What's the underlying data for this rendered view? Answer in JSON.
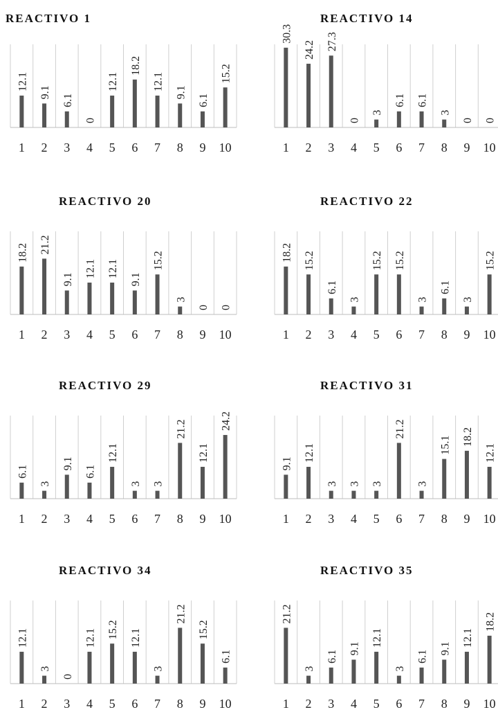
{
  "chart_data": [
    {
      "type": "bar",
      "title": "REACTIVO 1",
      "categories": [
        "1",
        "2",
        "3",
        "4",
        "5",
        "6",
        "7",
        "8",
        "9",
        "10"
      ],
      "values": [
        12.1,
        9.1,
        6.1,
        0,
        12.1,
        18.2,
        12.1,
        9.1,
        6.1,
        15.2
      ],
      "value_labels": [
        "12.1",
        "9.1",
        "6.1",
        "0",
        "12.1",
        "18.2",
        "12.1",
        "9.1",
        "6.1",
        "15.2"
      ],
      "ylim": [
        0,
        30.3
      ],
      "grid": true
    },
    {
      "type": "bar",
      "title": "REACTIVO 14",
      "categories": [
        "1",
        "2",
        "3",
        "4",
        "5",
        "6",
        "7",
        "8",
        "9",
        "10"
      ],
      "values": [
        30.3,
        24.2,
        27.3,
        0,
        3,
        6.1,
        6.1,
        3,
        0,
        0
      ],
      "value_labels": [
        "30.3",
        "24.2",
        "27.3",
        "0",
        "3",
        "6.1",
        "6.1",
        "3",
        "0",
        "0"
      ],
      "ylim": [
        0,
        30.3
      ],
      "grid": true
    },
    {
      "type": "bar",
      "title": "REACTIVO 20",
      "categories": [
        "1",
        "2",
        "3",
        "4",
        "5",
        "6",
        "7",
        "8",
        "9",
        "10"
      ],
      "values": [
        18.2,
        21.2,
        9.1,
        12.1,
        12.1,
        9.1,
        15.2,
        3,
        0,
        0
      ],
      "value_labels": [
        "18.2",
        "21.2",
        "9.1",
        "12.1",
        "12.1",
        "9.1",
        "15.2",
        "3",
        "0",
        "0"
      ],
      "ylim": [
        0,
        30.3
      ],
      "grid": true
    },
    {
      "type": "bar",
      "title": "REACTIVO 22",
      "categories": [
        "1",
        "2",
        "3",
        "4",
        "5",
        "6",
        "7",
        "8",
        "9",
        "10"
      ],
      "values": [
        18.2,
        15.2,
        6.1,
        3,
        15.2,
        15.2,
        3,
        6.1,
        3,
        15.2
      ],
      "value_labels": [
        "18.2",
        "15.2",
        "6.1",
        "3",
        "15.2",
        "15.2",
        "3",
        "6.1",
        "3",
        "15.2"
      ],
      "ylim": [
        0,
        30.3
      ],
      "grid": true
    },
    {
      "type": "bar",
      "title": "REACTIVO 29",
      "categories": [
        "1",
        "2",
        "3",
        "4",
        "5",
        "6",
        "7",
        "8",
        "9",
        "10"
      ],
      "values": [
        6.1,
        3,
        9.1,
        6.1,
        12.1,
        3,
        3,
        21.2,
        12.1,
        24.2
      ],
      "value_labels": [
        "6.1",
        "3",
        "9.1",
        "6.1",
        "12.1",
        "3",
        "3",
        "21.2",
        "12.1",
        "24.2"
      ],
      "ylim": [
        0,
        30.3
      ],
      "grid": true
    },
    {
      "type": "bar",
      "title": "REACTIVO 31",
      "categories": [
        "1",
        "2",
        "3",
        "4",
        "5",
        "6",
        "7",
        "8",
        "9",
        "10"
      ],
      "values": [
        9.1,
        12.1,
        3,
        3,
        3,
        21.2,
        3,
        15.1,
        18.2,
        12.1
      ],
      "value_labels": [
        "9.1",
        "12.1",
        "3",
        "3",
        "3",
        "21.2",
        "3",
        "15.1",
        "18.2",
        "12.1"
      ],
      "ylim": [
        0,
        30.3
      ],
      "grid": true
    },
    {
      "type": "bar",
      "title": "REACTIVO 34",
      "categories": [
        "1",
        "2",
        "3",
        "4",
        "5",
        "6",
        "7",
        "8",
        "9",
        "10"
      ],
      "values": [
        12.1,
        3,
        0,
        12.1,
        15.2,
        12.1,
        3,
        21.2,
        15.2,
        6.1
      ],
      "value_labels": [
        "12.1",
        "3",
        "0",
        "12.1",
        "15.2",
        "12.1",
        "3",
        "21.2",
        "15.2",
        "6.1"
      ],
      "ylim": [
        0,
        30.3
      ],
      "grid": true
    },
    {
      "type": "bar",
      "title": "REACTIVO 35",
      "categories": [
        "1",
        "2",
        "3",
        "4",
        "5",
        "6",
        "7",
        "8",
        "9",
        "10"
      ],
      "values": [
        21.2,
        3,
        6.1,
        9.1,
        12.1,
        3,
        6.1,
        9.1,
        12.1,
        18.2
      ],
      "value_labels": [
        "21.2",
        "3",
        "6.1",
        "9.1",
        "12.1",
        "3",
        "6.1",
        "9.1",
        "12.1",
        "18.2"
      ],
      "ylim": [
        0,
        30.3
      ],
      "grid": true
    }
  ]
}
